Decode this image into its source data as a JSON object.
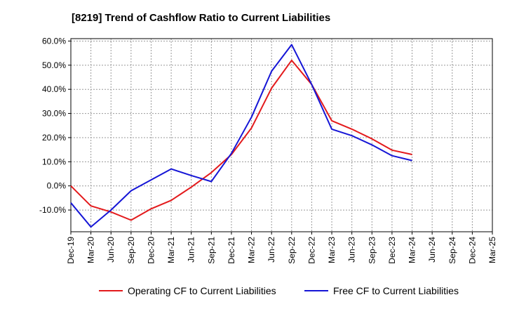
{
  "chart_data": {
    "type": "line",
    "title": "[8219]  Trend of Cashflow Ratio to Current Liabilities",
    "xlabel": "",
    "ylabel": "",
    "categories": [
      "Dec-19",
      "Mar-20",
      "Jun-20",
      "Sep-20",
      "Dec-20",
      "Mar-21",
      "Jun-21",
      "Sep-21",
      "Dec-21",
      "Mar-22",
      "Jun-22",
      "Sep-22",
      "Dec-22",
      "Mar-23",
      "Jun-23",
      "Sep-23",
      "Dec-23",
      "Mar-24",
      "Jun-24",
      "Sep-24",
      "Dec-24",
      "Mar-25"
    ],
    "y_ticks": [
      "60.0%",
      "50.0%",
      "40.0%",
      "30.0%",
      "20.0%",
      "10.0%",
      "0.0%",
      "-10.0%"
    ],
    "ylim": [
      -19,
      61
    ],
    "grid": true,
    "legend_position": "bottom",
    "series": [
      {
        "name": "Operating CF to Current Liabilities",
        "color": "#e31a1c",
        "values": [
          0.0,
          -8.3,
          -10.8,
          -14.2,
          -9.5,
          -6.0,
          -0.5,
          5.5,
          13.0,
          24.0,
          40.5,
          52.0,
          42.0,
          27.0,
          23.5,
          19.5,
          14.8,
          13.0,
          null,
          null,
          null,
          null
        ]
      },
      {
        "name": "Free CF to Current Liabilities",
        "color": "#1515d6",
        "values": [
          -7.0,
          -17.0,
          -10.0,
          -2.0,
          2.5,
          7.0,
          4.3,
          1.8,
          13.5,
          28.5,
          47.5,
          58.5,
          42.0,
          23.5,
          20.8,
          17.0,
          12.5,
          10.5,
          null,
          null,
          null,
          null
        ]
      }
    ]
  }
}
